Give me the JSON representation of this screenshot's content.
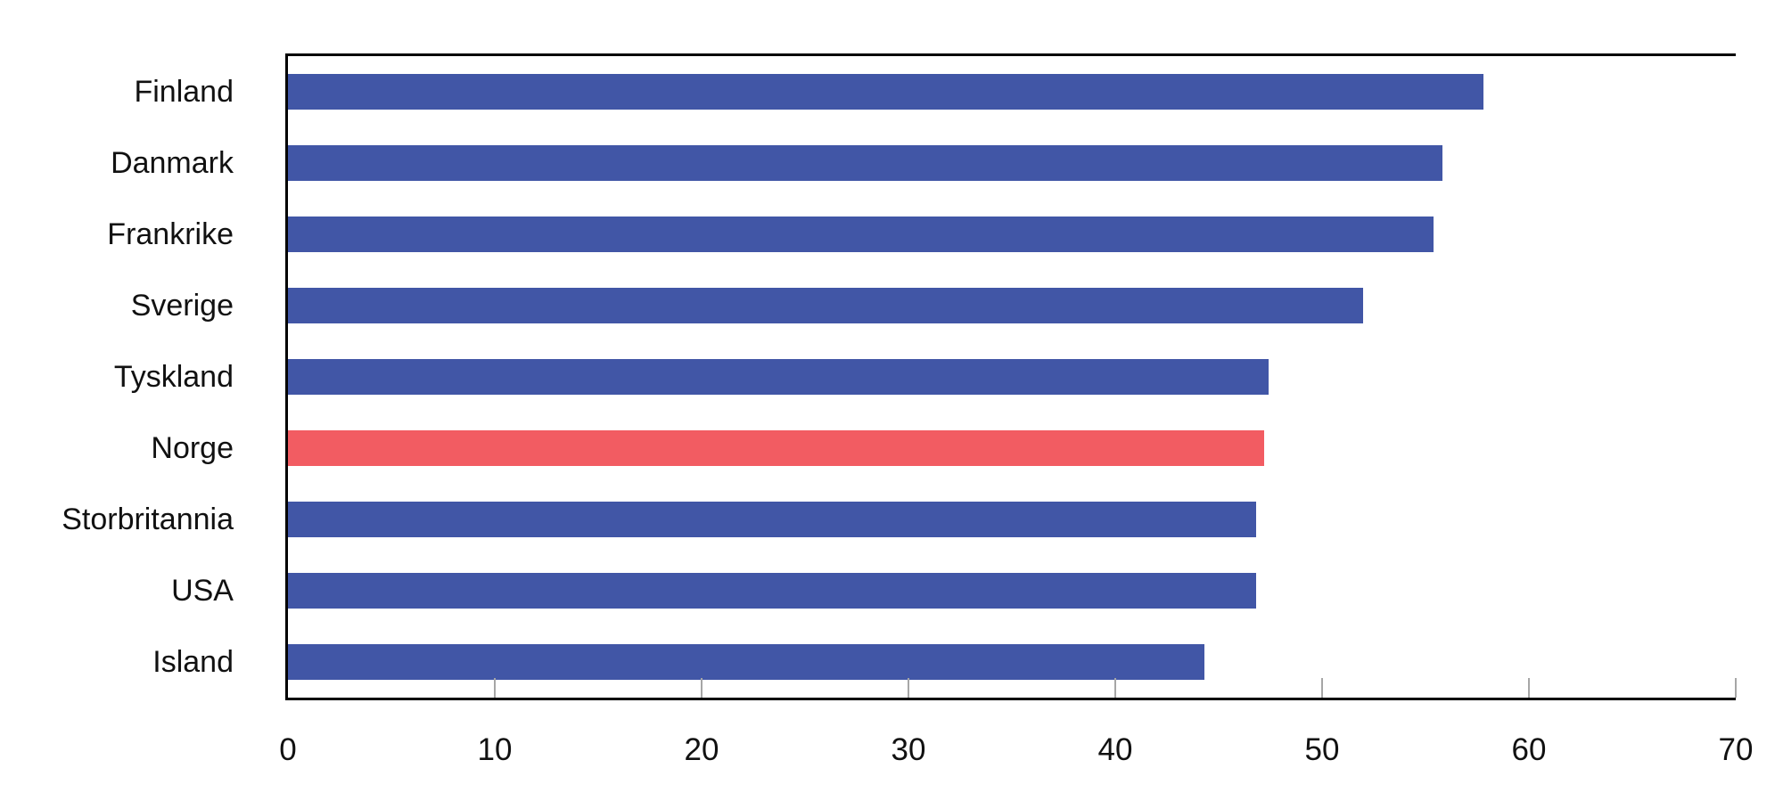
{
  "chart_data": {
    "type": "bar",
    "orientation": "horizontal",
    "title": "",
    "xlabel": "",
    "ylabel": "",
    "categories": [
      "Finland",
      "Danmark",
      "Frankrike",
      "Sverige",
      "Tyskland",
      "Norge",
      "Storbritannia",
      "USA",
      "Island"
    ],
    "values": [
      57.8,
      55.8,
      55.4,
      52.0,
      47.4,
      47.2,
      46.8,
      46.8,
      44.3
    ],
    "highlighted_category": "Norge",
    "colors": {
      "default": "#4156A6",
      "highlight": "#F25C62"
    },
    "xlim": [
      0,
      70
    ],
    "x_ticks": [
      0,
      10,
      20,
      30,
      40,
      50,
      60,
      70
    ],
    "grid": "off",
    "legend": "none"
  }
}
